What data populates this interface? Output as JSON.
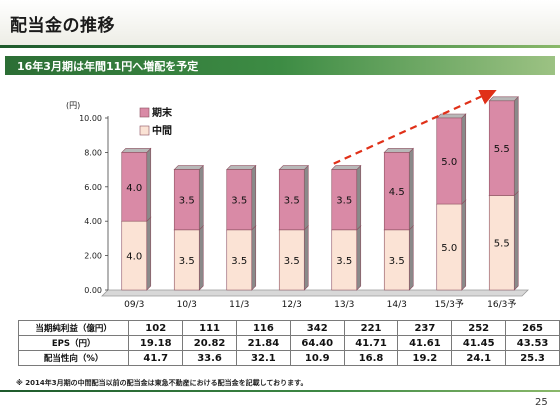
{
  "page": {
    "title": "配当金の推移",
    "banner": "16年3月期は年間11円へ増配を予定",
    "footnote": "※ 2014年3月期の中間配当以前の配当金は東急不動産における配当金を記載しております。",
    "page_number": "25"
  },
  "colors": {
    "fy_end": "#d98aa6",
    "interim": "#fbe3d5",
    "trend_arrow": "#e03018",
    "banner": "#3d8c44"
  },
  "chart_data": {
    "type": "bar",
    "stacked": true,
    "ylabel": "(円)",
    "ylim": [
      0,
      10
    ],
    "yticks": [
      "0.00",
      "2.00",
      "4.00",
      "6.00",
      "8.00",
      "10.00"
    ],
    "categories": [
      "09/3",
      "10/3",
      "11/3",
      "12/3",
      "13/3",
      "14/3",
      "15/3予",
      "16/3予"
    ],
    "series": [
      {
        "name": "中間",
        "values": [
          4.0,
          3.5,
          3.5,
          3.5,
          3.5,
          3.5,
          5.0,
          5.5
        ],
        "labels": [
          "4.0",
          "3.5",
          "3.5",
          "3.5",
          "3.5",
          "3.5",
          "5.0",
          "5.5"
        ]
      },
      {
        "name": "期末",
        "values": [
          4.0,
          3.5,
          3.5,
          3.5,
          3.5,
          4.5,
          5.0,
          5.5
        ],
        "labels": [
          "4.0",
          "3.5",
          "3.5",
          "3.5",
          "3.5",
          "4.5",
          "5.0",
          "5.5"
        ]
      }
    ],
    "legend_position": "top-left",
    "annotation": "dashed upward trend arrow from 13/3 toward 16/3予"
  },
  "table": {
    "rows": [
      {
        "label": "当期純利益（億円）",
        "values": [
          "102",
          "111",
          "116",
          "342",
          "221",
          "237",
          "252",
          "265"
        ]
      },
      {
        "label": "EPS（円）",
        "values": [
          "19.18",
          "20.82",
          "21.84",
          "64.40",
          "41.71",
          "41.61",
          "41.45",
          "43.53"
        ]
      },
      {
        "label": "配当性向（%）",
        "values": [
          "41.7",
          "33.6",
          "32.1",
          "10.9",
          "16.8",
          "19.2",
          "24.1",
          "25.3"
        ]
      }
    ]
  }
}
